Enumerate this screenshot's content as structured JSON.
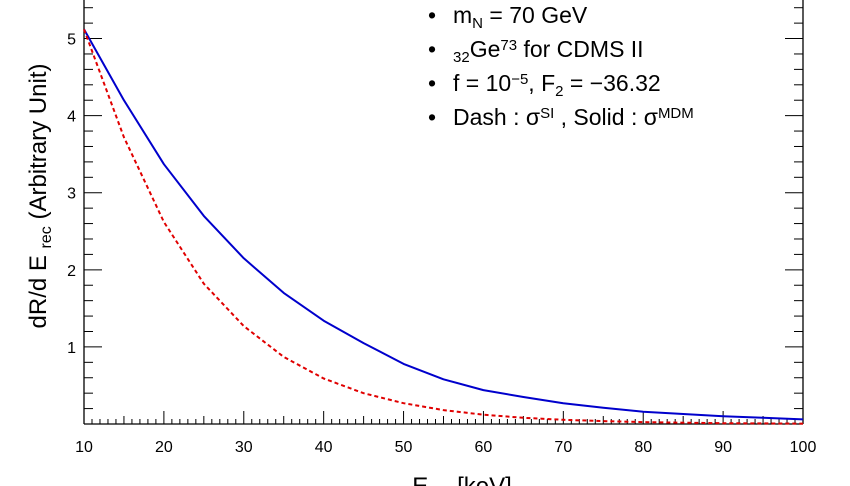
{
  "chart_data": {
    "type": "line",
    "xlabel": {
      "main": "E",
      "sub": "rec",
      "unit": "[keV]"
    },
    "ylabel": {
      "main": "dR/d E",
      "sub": "rec",
      "unit": "(Arbitrary   Unit)"
    },
    "xlim": [
      10,
      100
    ],
    "ylim": [
      0,
      5.5
    ],
    "x_ticks": [
      10,
      20,
      30,
      40,
      50,
      60,
      70,
      80,
      90,
      100
    ],
    "y_ticks": [
      1,
      2,
      3,
      4,
      5
    ],
    "legend": {
      "position": "top-right",
      "items": [
        {
          "bullet": "•",
          "parts": [
            {
              "t": "m"
            },
            {
              "t": "N",
              "s": "sub"
            },
            {
              "t": " = 70 GeV"
            }
          ]
        },
        {
          "bullet": "•",
          "parts": [
            {
              "t": "32",
              "s": "sub"
            },
            {
              "t": "Ge"
            },
            {
              "t": "73",
              "s": "sup"
            },
            {
              "t": " for CDMS II"
            }
          ]
        },
        {
          "bullet": "•",
          "parts": [
            {
              "t": "f  = 10"
            },
            {
              "t": "−5",
              "s": "sup"
            },
            {
              "t": ",  F"
            },
            {
              "t": "2",
              "s": "sub"
            },
            {
              "t": " = −36.32"
            }
          ]
        },
        {
          "bullet": "•",
          "parts": [
            {
              "t": "Dash : σ"
            },
            {
              "t": "SI",
              "s": "sup"
            },
            {
              "t": " , Solid : σ"
            },
            {
              "t": "MDM",
              "s": "sup"
            }
          ]
        }
      ]
    },
    "series": [
      {
        "name": "σ^MDM (Solid)",
        "style": "solid",
        "color": "#0000cc",
        "x": [
          10,
          15,
          20,
          25,
          30,
          35,
          40,
          45,
          50,
          55,
          60,
          65,
          70,
          75,
          80,
          85,
          90,
          95,
          100
        ],
        "y": [
          5.12,
          4.2,
          3.37,
          2.7,
          2.15,
          1.7,
          1.34,
          1.05,
          0.78,
          0.58,
          0.44,
          0.35,
          0.27,
          0.21,
          0.16,
          0.13,
          0.1,
          0.08,
          0.06
        ]
      },
      {
        "name": "σ^SI (Dash)",
        "style": "dash",
        "color": "#e00000",
        "x": [
          10,
          15,
          20,
          25,
          30,
          35,
          40,
          45,
          50,
          55,
          60,
          65,
          70,
          75,
          80,
          85,
          90,
          95,
          100
        ],
        "y": [
          5.12,
          3.72,
          2.62,
          1.82,
          1.27,
          0.87,
          0.59,
          0.4,
          0.27,
          0.18,
          0.12,
          0.08,
          0.055,
          0.037,
          0.025,
          0.017,
          0.011,
          0.008,
          0.005
        ]
      }
    ]
  }
}
